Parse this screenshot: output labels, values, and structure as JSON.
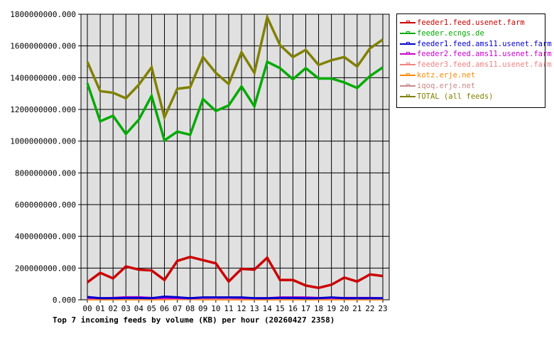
{
  "chart_data": {
    "type": "line",
    "title": "Top 7 incoming feeds by volume (KB) per hour (20260427 2358)",
    "xlabel": "",
    "ylabel": "",
    "ylim": [
      0,
      1800000000
    ],
    "grid": true,
    "legend_position": "right",
    "y_ticks": [
      "0.000",
      "200000000.000",
      "400000000.000",
      "600000000.000",
      "800000000.000",
      "1000000000.000",
      "1200000000.000",
      "1400000000.000",
      "1600000000.000",
      "1800000000.000"
    ],
    "categories": [
      "00",
      "01",
      "02",
      "03",
      "04",
      "05",
      "06",
      "07",
      "08",
      "09",
      "10",
      "11",
      "12",
      "13",
      "14",
      "15",
      "16",
      "17",
      "18",
      "19",
      "20",
      "21",
      "22",
      "23"
    ],
    "series": [
      {
        "name": "feeder1.feed.usenet.farm",
        "color": "#cc0000",
        "values": [
          110000000,
          170000000,
          135000000,
          210000000,
          190000000,
          185000000,
          125000000,
          245000000,
          270000000,
          250000000,
          230000000,
          115000000,
          195000000,
          190000000,
          265000000,
          125000000,
          125000000,
          90000000,
          75000000,
          95000000,
          140000000,
          115000000,
          160000000,
          150000000
        ]
      },
      {
        "name": "feeder.ecngs.de",
        "color": "#00aa00",
        "values": [
          1365000000,
          1125000000,
          1160000000,
          1045000000,
          1135000000,
          1285000000,
          1005000000,
          1060000000,
          1040000000,
          1265000000,
          1190000000,
          1225000000,
          1345000000,
          1220000000,
          1500000000,
          1460000000,
          1390000000,
          1460000000,
          1395000000,
          1395000000,
          1370000000,
          1335000000,
          1410000000,
          1465000000
        ]
      },
      {
        "name": "feeder1.feed.ams11.usenet.farm",
        "color": "#0000cc",
        "values": [
          18000000,
          10000000,
          10000000,
          12000000,
          12000000,
          10000000,
          20000000,
          16000000,
          10000000,
          15000000,
          15000000,
          15000000,
          15000000,
          10000000,
          10000000,
          12000000,
          12000000,
          10000000,
          10000000,
          15000000,
          10000000,
          10000000,
          10000000,
          10000000
        ]
      },
      {
        "name": "feeder2.feed.ams11.usenet.farm",
        "color": "#cc00cc",
        "values": [
          12000000,
          10000000,
          12000000,
          16000000,
          16000000,
          12000000,
          12000000,
          12000000,
          10000000,
          14000000,
          14000000,
          14000000,
          12000000,
          10000000,
          10000000,
          15000000,
          15000000,
          15000000,
          12000000,
          12000000,
          12000000,
          12000000,
          12000000,
          10000000
        ]
      },
      {
        "name": "feeder3.feed.ams11.usenet.farm",
        "color": "#f08080",
        "values": [
          8000000,
          10000000,
          8000000,
          8000000,
          8000000,
          8000000,
          8000000,
          8000000,
          8000000,
          8000000,
          8000000,
          8000000,
          8000000,
          8000000,
          8000000,
          8000000,
          8000000,
          8000000,
          8000000,
          8000000,
          8000000,
          8000000,
          8000000,
          8000000
        ]
      },
      {
        "name": "kotz.erje.net",
        "color": "#ff8800",
        "values": [
          3000000,
          3000000,
          3000000,
          3000000,
          3000000,
          3000000,
          3000000,
          5000000,
          5000000,
          3000000,
          3000000,
          3000000,
          3000000,
          3000000,
          3000000,
          3000000,
          3000000,
          3000000,
          3000000,
          3000000,
          3000000,
          3000000,
          3000000,
          3000000
        ]
      },
      {
        "name": "iqoq.erje.net",
        "color": "#cc8888",
        "values": [
          6000000,
          6000000,
          6000000,
          6000000,
          6000000,
          6000000,
          6000000,
          6000000,
          6000000,
          6000000,
          6000000,
          6000000,
          6000000,
          6000000,
          6000000,
          6000000,
          6000000,
          6000000,
          6000000,
          6000000,
          6000000,
          6000000,
          6000000,
          6000000
        ]
      },
      {
        "name": "TOTAL (all feeds)",
        "color": "#808000",
        "values": [
          1500000000,
          1315000000,
          1305000000,
          1270000000,
          1355000000,
          1465000000,
          1150000000,
          1330000000,
          1340000000,
          1530000000,
          1430000000,
          1360000000,
          1560000000,
          1430000000,
          1780000000,
          1605000000,
          1530000000,
          1575000000,
          1480000000,
          1510000000,
          1530000000,
          1470000000,
          1585000000,
          1640000000
        ]
      }
    ]
  },
  "legend": {
    "items": [
      {
        "label": "feeder1.feed.usenet.farm",
        "color": "#cc0000"
      },
      {
        "label": "feeder.ecngs.de",
        "color": "#00aa00"
      },
      {
        "label": "feeder1.feed.ams11.usenet.farm",
        "color": "#0000cc"
      },
      {
        "label": "feeder2.feed.ams11.usenet.farm",
        "color": "#cc00cc"
      },
      {
        "label": "feeder3.feed.ams11.usenet.farm",
        "color": "#f08080"
      },
      {
        "label": "kotz.erje.net",
        "color": "#ff8800"
      },
      {
        "label": "iqoq.erje.net",
        "color": "#cc8888"
      },
      {
        "label": "TOTAL (all feeds)",
        "color": "#808000"
      }
    ]
  },
  "caption": "Top 7 incoming feeds by volume (KB) per hour (20260427 2358)"
}
